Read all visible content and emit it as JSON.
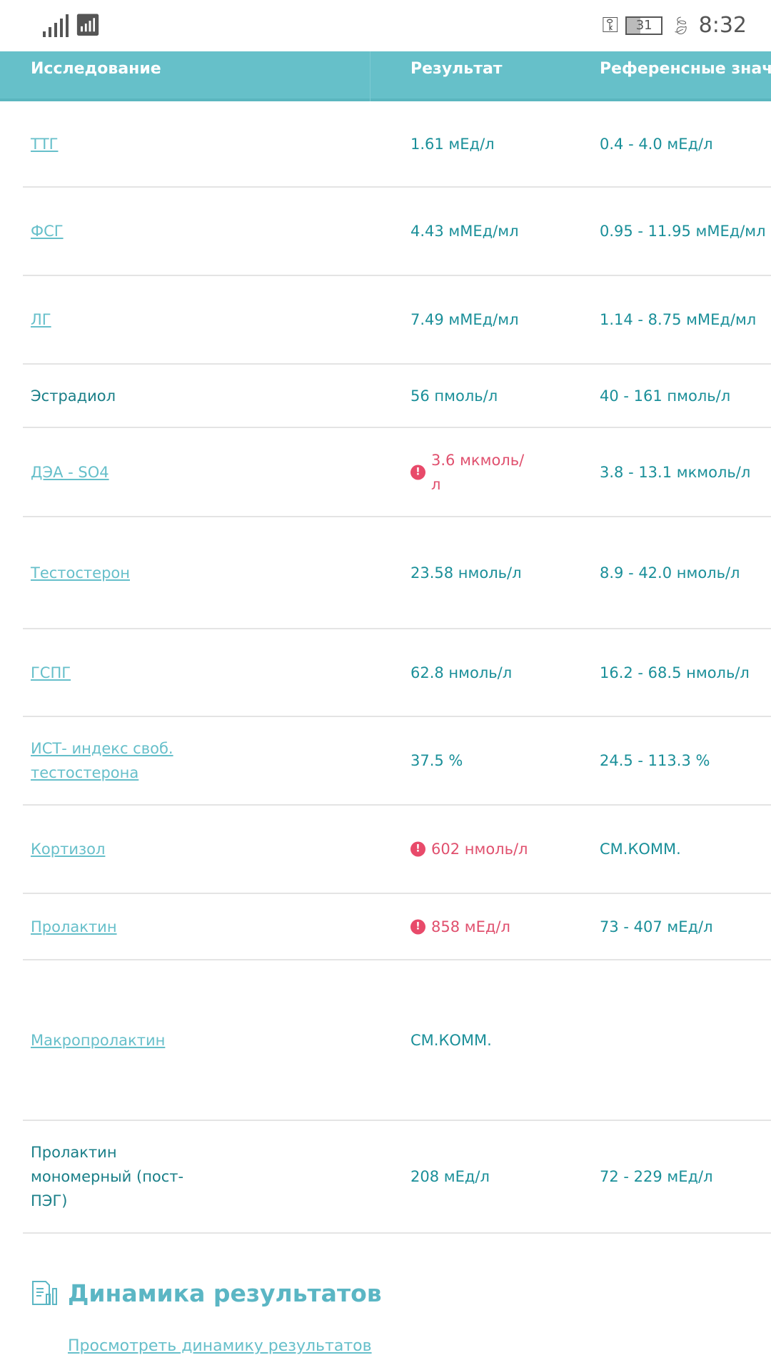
{
  "status_bar": {
    "time": "8:32",
    "battery": "31",
    "icons": [
      "signal-icon",
      "wifi-icon",
      "vpn-key-icon",
      "battery-icon",
      "leaf-icon"
    ]
  },
  "table": {
    "headers": [
      "Исследование",
      "Результат",
      "Референсные знач"
    ],
    "rows": [
      {
        "name": "ТТГ",
        "link": true,
        "result": "1.61 мЕд/л",
        "ref": "0.4 - 4.0 мЕд/л",
        "abnormal": false
      },
      {
        "name": "ФСГ",
        "link": true,
        "result": "4.43 мМЕд/мл",
        "ref": "0.95 - 11.95 мМЕд/мл",
        "abnormal": false
      },
      {
        "name": "ЛГ",
        "link": true,
        "result": "7.49 мМЕд/мл",
        "ref": "1.14 - 8.75 мМЕд/мл",
        "abnormal": false
      },
      {
        "name": "Эстрадиол",
        "link": false,
        "result": "56 пмоль/л",
        "ref": "40 - 161 пмоль/л",
        "abnormal": false
      },
      {
        "name": "ДЭА - SO4",
        "link": true,
        "result": "3.6 мкмоль/л",
        "ref": "3.8 - 13.1 мкмоль/л",
        "abnormal": true
      },
      {
        "name": "Тестостерон",
        "link": true,
        "result": "23.58 нмоль/л",
        "ref": "8.9 - 42.0 нмоль/л",
        "abnormal": false
      },
      {
        "name": "ГСПГ",
        "link": true,
        "result": "62.8 нмоль/л",
        "ref": "16.2 - 68.5 нмоль/л",
        "abnormal": false
      },
      {
        "name": "ИСТ- индекс своб. тестостерона",
        "link": true,
        "result": "37.5 %",
        "ref": "24.5 - 113.3 %",
        "abnormal": false
      },
      {
        "name": "Кортизол",
        "link": true,
        "result": "602 нмоль/л",
        "ref": "СМ.КОММ.",
        "abnormal": true
      },
      {
        "name": "Пролактин",
        "link": true,
        "result": "858 мЕд/л",
        "ref": "73 - 407 мЕд/л",
        "abnormal": true
      },
      {
        "name": "Макропролактин",
        "link": true,
        "result": "СМ.КОММ.",
        "ref": "",
        "abnormal": false
      },
      {
        "name": "Пролактин мономерный (пост-ПЭГ)",
        "link": false,
        "result": "208 мЕд/л",
        "ref": "72 - 229 мЕд/л",
        "abnormal": false
      }
    ]
  },
  "dynamics": {
    "title": "Динамика результатов",
    "link": "Просмотреть динамику результатов"
  },
  "colors": {
    "header_bg": "#66c0c9",
    "link": "#66bfca",
    "text": "#1a8f99",
    "abnormal": "#e0506e"
  }
}
